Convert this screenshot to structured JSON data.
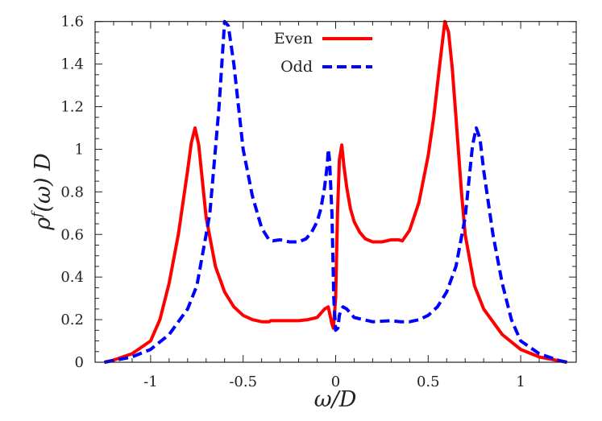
{
  "chart_data": {
    "type": "line",
    "title": "",
    "xlabel": "ω/D",
    "ylabel": "ρ^f(ω) D",
    "xlim": [
      -1.3,
      1.3
    ],
    "ylim": [
      0,
      1.6
    ],
    "xticks": [
      -1,
      -0.5,
      0,
      0.5,
      1
    ],
    "xtick_labels": [
      "-1",
      "-0.5",
      "0",
      "0.5",
      "1"
    ],
    "yticks": [
      0,
      0.2,
      0.4,
      0.6,
      0.8,
      1,
      1.2,
      1.4,
      1.6
    ],
    "ytick_labels": [
      "0",
      "0.2",
      "0.4",
      "0.6",
      "0.8",
      "1",
      "1.2",
      "1.4",
      "1.6"
    ],
    "grid": false,
    "legend_position": "top-center",
    "series": [
      {
        "name": "Even",
        "color": "#ff0000",
        "style": "solid",
        "x": [
          -1.25,
          -1.2,
          -1.1,
          -1.0,
          -0.95,
          -0.9,
          -0.85,
          -0.8,
          -0.78,
          -0.76,
          -0.74,
          -0.72,
          -0.7,
          -0.65,
          -0.6,
          -0.55,
          -0.5,
          -0.45,
          -0.4,
          -0.36,
          -0.35,
          -0.3,
          -0.2,
          -0.15,
          -0.1,
          -0.08,
          -0.06,
          -0.04,
          -0.03,
          -0.02,
          -0.012,
          0.0,
          0.01,
          0.02,
          0.033,
          0.045,
          0.06,
          0.08,
          0.1,
          0.13,
          0.16,
          0.2,
          0.25,
          0.3,
          0.34,
          0.36,
          0.4,
          0.45,
          0.5,
          0.53,
          0.56,
          0.59,
          0.61,
          0.63,
          0.65,
          0.68,
          0.7,
          0.75,
          0.8,
          0.9,
          1.0,
          1.1,
          1.2,
          1.25
        ],
        "y": [
          0.0,
          0.01,
          0.04,
          0.1,
          0.2,
          0.37,
          0.6,
          0.9,
          1.03,
          1.1,
          1.02,
          0.85,
          0.68,
          0.45,
          0.33,
          0.26,
          0.22,
          0.2,
          0.19,
          0.19,
          0.195,
          0.195,
          0.195,
          0.2,
          0.21,
          0.23,
          0.25,
          0.26,
          0.22,
          0.18,
          0.16,
          0.3,
          0.7,
          0.95,
          1.02,
          0.92,
          0.82,
          0.72,
          0.66,
          0.61,
          0.58,
          0.565,
          0.565,
          0.575,
          0.575,
          0.57,
          0.62,
          0.75,
          0.97,
          1.15,
          1.38,
          1.6,
          1.55,
          1.38,
          1.15,
          0.8,
          0.6,
          0.36,
          0.25,
          0.13,
          0.06,
          0.025,
          0.008,
          0.0
        ]
      },
      {
        "name": "Odd",
        "color": "#0000ff",
        "style": "dashed",
        "x": [
          -1.25,
          -1.2,
          -1.1,
          -1.0,
          -0.9,
          -0.8,
          -0.75,
          -0.7,
          -0.68,
          -0.65,
          -0.63,
          -0.6,
          -0.58,
          -0.55,
          -0.5,
          -0.45,
          -0.4,
          -0.36,
          -0.34,
          -0.3,
          -0.25,
          -0.2,
          -0.16,
          -0.13,
          -0.1,
          -0.08,
          -0.06,
          -0.045,
          -0.04,
          -0.033,
          -0.02,
          -0.01,
          0.0,
          0.012,
          0.02,
          0.03,
          0.04,
          0.06,
          0.08,
          0.1,
          0.15,
          0.2,
          0.3,
          0.35,
          0.36,
          0.4,
          0.45,
          0.5,
          0.55,
          0.6,
          0.65,
          0.7,
          0.72,
          0.74,
          0.76,
          0.78,
          0.8,
          0.85,
          0.9,
          0.95,
          1.0,
          1.1,
          1.2,
          1.25
        ],
        "y": [
          0.0,
          0.008,
          0.025,
          0.06,
          0.13,
          0.25,
          0.36,
          0.6,
          0.7,
          1.0,
          1.2,
          1.6,
          1.58,
          1.4,
          1.0,
          0.78,
          0.63,
          0.575,
          0.57,
          0.575,
          0.565,
          0.565,
          0.58,
          0.61,
          0.66,
          0.72,
          0.82,
          0.93,
          1.0,
          0.95,
          0.7,
          0.3,
          0.15,
          0.16,
          0.22,
          0.25,
          0.26,
          0.25,
          0.23,
          0.21,
          0.2,
          0.19,
          0.195,
          0.19,
          0.19,
          0.19,
          0.2,
          0.22,
          0.26,
          0.33,
          0.45,
          0.68,
          0.85,
          1.02,
          1.1,
          1.05,
          0.9,
          0.6,
          0.37,
          0.2,
          0.1,
          0.04,
          0.01,
          0.0
        ]
      }
    ]
  }
}
